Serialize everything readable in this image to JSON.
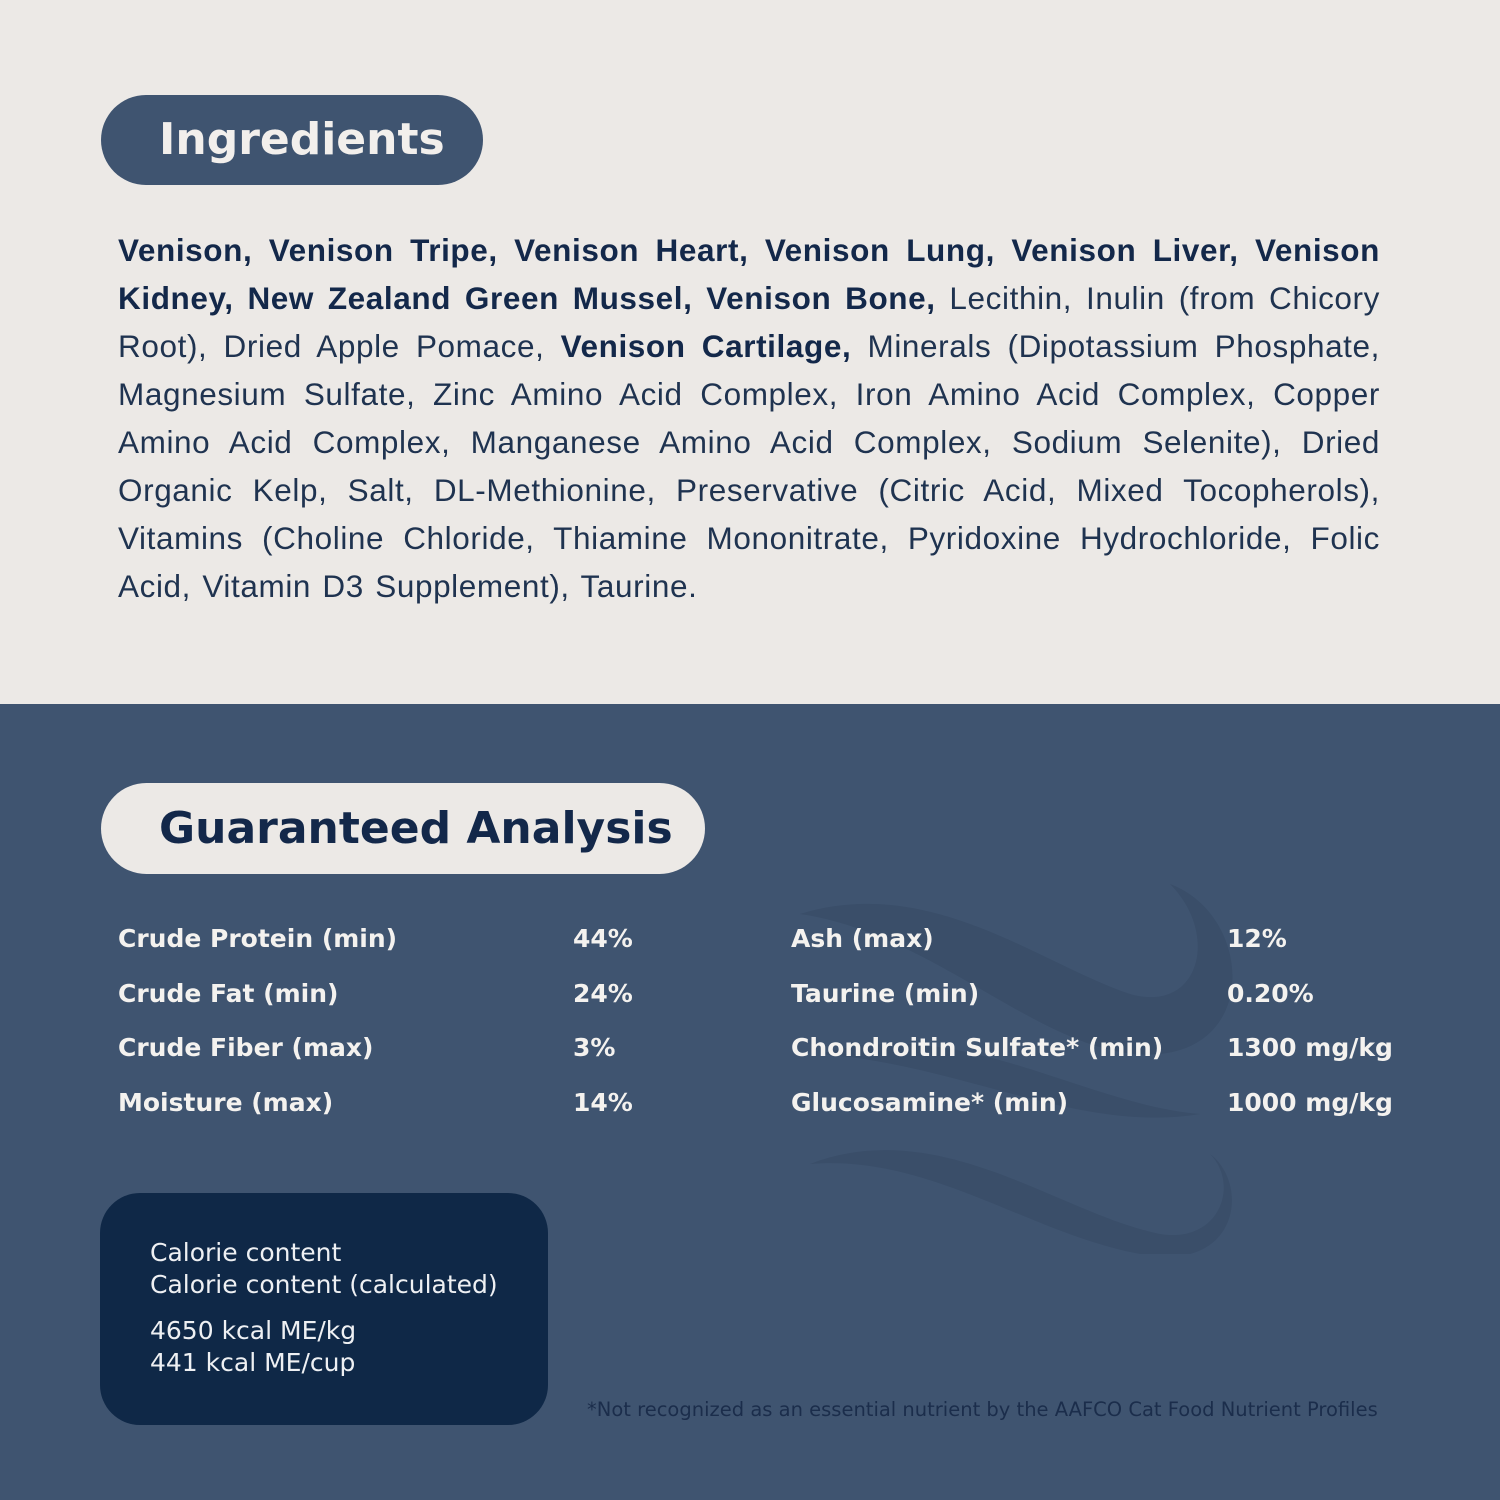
{
  "ingredients": {
    "title": "Ingredients",
    "segments": [
      {
        "text": "Venison, Venison Tripe, Venison Heart, Venison Lung, Venison Liver, Venison Kidney, New Zealand Green Mussel, Venison Bone,",
        "bold": true
      },
      {
        "text": " Lecithin, Inulin (from Chicory Root), Dried Apple Pomace, ",
        "bold": false
      },
      {
        "text": "Venison Cartilage,",
        "bold": true
      },
      {
        "text": " Minerals (Dipotassium Phosphate, Magnesium Sulfate, Zinc Amino Acid Complex, Iron Amino Acid Complex, Copper Amino Acid Complex, Manganese Amino Acid Complex, Sodium Selenite), Dried Organic Kelp, Salt, DL-Methionine, Preservative (Citric Acid, Mixed Tocopherols), Vitamins (Choline Chloride, Thiamine Mononitrate, Pyridoxine Hydrochloride, Folic Acid, Vitamin D3 Supplement), Taurine.",
        "bold": false
      }
    ]
  },
  "analysis": {
    "title": "Guaranteed Analysis",
    "left": [
      {
        "label": "Crude Protein (min)",
        "value": "44%"
      },
      {
        "label": "Crude Fat (min)",
        "value": "24%"
      },
      {
        "label": "Crude Fiber (max)",
        "value": "3%"
      },
      {
        "label": "Moisture (max)",
        "value": "14%"
      }
    ],
    "right": [
      {
        "label": "Ash (max)",
        "value": "12%"
      },
      {
        "label": "Taurine (min)",
        "value": "0.20%"
      },
      {
        "label": "Chondroitin Sulfate* (min)",
        "value": "1300 mg/kg"
      },
      {
        "label": "Glucosamine* (min)",
        "value": "1000 mg/kg"
      }
    ]
  },
  "calorie": {
    "line1": "Calorie content",
    "line2": "Calorie content (calculated)",
    "value1": "4650 kcal ME/kg",
    "value2": "441 kcal ME/cup"
  },
  "footnote": "*Not recognized as an essential nutrient by the AAFCO Cat Food Nutrient Profiles",
  "colors": {
    "cream": "#ece9e6",
    "slate": "#3f5470",
    "navy": "#0f2847",
    "text_dark": "#13284a"
  }
}
